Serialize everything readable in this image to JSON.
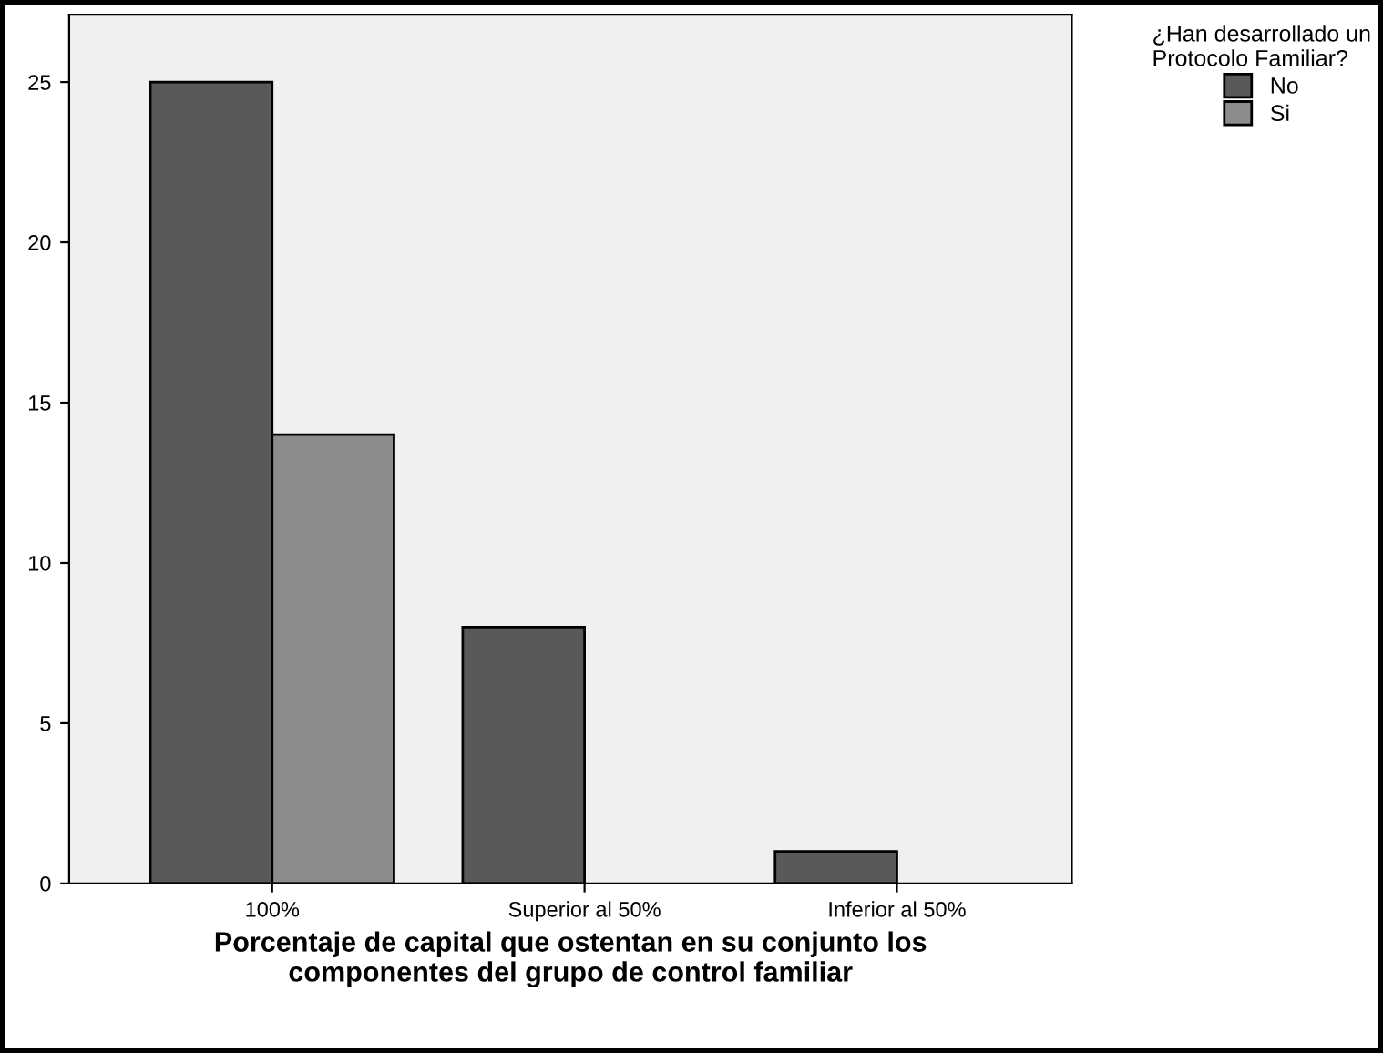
{
  "chart_data": {
    "type": "bar",
    "xlabel": "Porcentaje de capital que ostentan en su conjunto los\ncomponentes del grupo de control familiar",
    "legend_title": "¿Han desarrollado un\nProtocolo Familiar?",
    "categories": [
      "100%",
      "Superior al 50%",
      "Inferior al 50%"
    ],
    "series": [
      {
        "name": "No",
        "color": "#595959",
        "values": [
          25,
          8,
          1
        ]
      },
      {
        "name": "Si",
        "color": "#8c8c8c",
        "values": [
          14,
          null,
          null
        ]
      }
    ],
    "ylim": [
      0,
      27.1
    ],
    "yticks": [
      0,
      5,
      10,
      15,
      20,
      25
    ],
    "grid": false,
    "legend": "top right"
  }
}
